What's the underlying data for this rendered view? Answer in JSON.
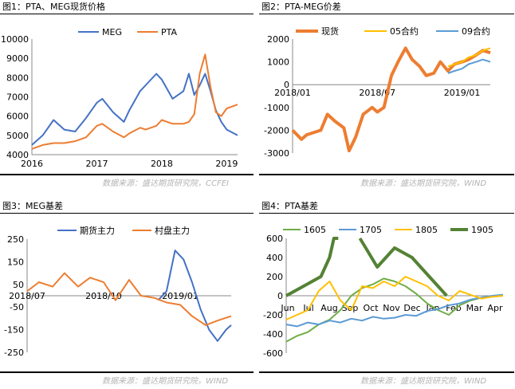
{
  "panels": [
    {
      "title": "图1：PTA、MEG现货价格",
      "source": "数据来源：盛达期货研究院，CCFEI"
    },
    {
      "title": "图2：PTA-MEG价差",
      "source": "数据来源：盛达期货研究院，WIND"
    },
    {
      "title": "图3：MEG基差",
      "source": "数据来源：盛达期货研究院，WIND"
    },
    {
      "title": "图4：PTA基差",
      "source": "数据来源：盛达期货研究院，WIND"
    }
  ],
  "colors": {
    "blue": "#4472C4",
    "orange": "#ED7D31",
    "yellow": "#FFC000",
    "lightblue": "#5B9BD5",
    "green": "#70AD47",
    "darkgreen": "#548235"
  },
  "chart_data": [
    {
      "type": "line",
      "title": "",
      "x_ticks": [
        "2016",
        "2017",
        "2018",
        "2019"
      ],
      "y_ticks": [
        4000,
        5000,
        6000,
        7000,
        8000,
        9000,
        10000
      ],
      "ylim": [
        4000,
        10000
      ],
      "xlim": [
        "2016-01",
        "2019-03"
      ],
      "legend": "top-center",
      "series": [
        {
          "name": "MEG",
          "color": "#4472C4",
          "x": [
            "2016-01",
            "2016-03",
            "2016-05",
            "2016-07",
            "2016-09",
            "2016-11",
            "2017-01",
            "2017-02",
            "2017-04",
            "2017-06",
            "2017-07",
            "2017-09",
            "2017-10",
            "2017-12",
            "2018-01",
            "2018-03",
            "2018-05",
            "2018-06",
            "2018-07",
            "2018-08",
            "2018-09",
            "2018-10",
            "2018-11",
            "2018-12",
            "2019-01",
            "2019-03"
          ],
          "y": [
            4500,
            5000,
            5800,
            5300,
            5200,
            5900,
            6700,
            6900,
            6200,
            5700,
            6300,
            7300,
            7600,
            8200,
            7900,
            6900,
            7300,
            8200,
            7100,
            7600,
            8200,
            7300,
            6300,
            5700,
            5300,
            5000
          ]
        },
        {
          "name": "PTA",
          "color": "#ED7D31",
          "x": [
            "2016-01",
            "2016-03",
            "2016-05",
            "2016-07",
            "2016-09",
            "2016-11",
            "2017-01",
            "2017-02",
            "2017-04",
            "2017-06",
            "2017-07",
            "2017-09",
            "2017-10",
            "2017-12",
            "2018-01",
            "2018-03",
            "2018-05",
            "2018-06",
            "2018-07",
            "2018-08",
            "2018-09",
            "2018-10",
            "2018-11",
            "2018-12",
            "2019-01",
            "2019-03"
          ],
          "y": [
            4300,
            4500,
            4600,
            4600,
            4700,
            4900,
            5500,
            5600,
            5200,
            4900,
            5100,
            5400,
            5300,
            5500,
            5800,
            5600,
            5600,
            5700,
            6100,
            8200,
            9200,
            7500,
            6200,
            6000,
            6400,
            6600
          ]
        }
      ]
    },
    {
      "type": "line",
      "title": "",
      "x_ticks": [
        "2018/01",
        "2018/07",
        "2019/01"
      ],
      "y_ticks": [
        -3000,
        -2000,
        -1000,
        0,
        1000,
        2000
      ],
      "ylim": [
        -3000,
        2000
      ],
      "xlim": [
        "2018-01",
        "2019-03"
      ],
      "legend": "top",
      "series": [
        {
          "name": "现货",
          "color": "#ED7D31",
          "x": [
            "2018-01",
            "2018-01-20",
            "2018-02",
            "2018-03",
            "2018-03-15",
            "2018-04",
            "2018-04-20",
            "2018-05",
            "2018-05-15",
            "2018-06",
            "2018-06-20",
            "2018-07",
            "2018-07-15",
            "2018-08",
            "2018-08-15",
            "2018-09",
            "2018-09-15",
            "2018-10",
            "2018-10-15",
            "2018-11",
            "2018-11-15",
            "2018-12",
            "2018-12-15",
            "2019-01",
            "2019-01-15",
            "2019-02",
            "2019-02-15",
            "2019-03"
          ],
          "y": [
            -2000,
            -2400,
            -2200,
            -2000,
            -1300,
            -1600,
            -1900,
            -2900,
            -2300,
            -1300,
            -1000,
            -1200,
            -1000,
            400,
            1000,
            1600,
            1100,
            800,
            400,
            500,
            1000,
            600,
            900,
            1000,
            1100,
            1300,
            1500,
            1400
          ]
        },
        {
          "name": "05合约",
          "color": "#FFC000",
          "x": [
            "2018-12",
            "2018-12-15",
            "2019-01",
            "2019-01-15",
            "2019-02",
            "2019-02-15",
            "2019-03"
          ],
          "y": [
            800,
            900,
            1000,
            1200,
            1300,
            1500,
            1600
          ]
        },
        {
          "name": "09合约",
          "color": "#5B9BD5",
          "x": [
            "2018-12",
            "2018-12-15",
            "2019-01",
            "2019-01-15",
            "2019-02",
            "2019-02-15",
            "2019-03"
          ],
          "y": [
            500,
            600,
            700,
            900,
            1000,
            1100,
            1000
          ]
        }
      ]
    },
    {
      "type": "line",
      "title": "",
      "x_ticks": [
        "2018/07",
        "2018/10",
        "2019/01"
      ],
      "y_ticks": [
        -250,
        -150,
        -50,
        50,
        150,
        250
      ],
      "y_tick_labels": [
        "-250",
        "-150",
        "-50",
        "50",
        "150",
        "250"
      ],
      "ylim": [
        -250,
        250
      ],
      "xlim": [
        "2018-07",
        "2019-03"
      ],
      "legend": "top",
      "series": [
        {
          "name": "期货主力",
          "color": "#4472C4",
          "x": [
            "2018-12-05",
            "2018-12-15",
            "2018-12-25",
            "2019-01-05",
            "2019-01-15",
            "2019-01-25",
            "2019-02-05",
            "2019-02-15",
            "2019-02-25",
            "2019-03"
          ],
          "y": [
            -20,
            20,
            200,
            160,
            60,
            -60,
            -150,
            -200,
            -150,
            -130
          ]
        },
        {
          "name": "村盘主力",
          "color": "#ED7D31",
          "x": [
            "2018-07",
            "2018-07-15",
            "2018-08",
            "2018-08-15",
            "2018-09",
            "2018-09-15",
            "2018-10",
            "2018-10-15",
            "2018-11",
            "2018-11-15",
            "2018-12",
            "2018-12-15",
            "2019-01",
            "2019-01-15",
            "2019-02",
            "2019-02-15",
            "2019-03"
          ],
          "y": [
            20,
            60,
            40,
            100,
            40,
            80,
            60,
            -20,
            70,
            0,
            -10,
            -30,
            -40,
            -90,
            -130,
            -110,
            -90
          ]
        }
      ]
    },
    {
      "type": "line",
      "title": "",
      "x_ticks": [
        "Jun",
        "Jul",
        "Aug",
        "Sep",
        "Oct",
        "Nov",
        "Dec",
        "Jan",
        "Feb",
        "Mar",
        "Apr"
      ],
      "y_ticks": [
        -600,
        -400,
        -200,
        0,
        200,
        400,
        600
      ],
      "ylim": [
        -600,
        600
      ],
      "legend": "top",
      "series": [
        {
          "name": "1605",
          "color": "#70AD47",
          "x": [
            0,
            0.5,
            1,
            1.5,
            2,
            2.5,
            3,
            3.5,
            4,
            4.5,
            5,
            5.5,
            6,
            6.5,
            7,
            7.5,
            8,
            8.5,
            9,
            9.5,
            10
          ],
          "y": [
            -480,
            -420,
            -380,
            -300,
            -250,
            -150,
            0,
            80,
            120,
            180,
            150,
            100,
            20,
            -80,
            -150,
            -200,
            -100,
            -50,
            -20,
            -10,
            0
          ]
        },
        {
          "name": "1705",
          "color": "#5B9BD5",
          "x": [
            0,
            0.5,
            1,
            1.5,
            2,
            2.5,
            3,
            3.5,
            4,
            4.5,
            5,
            5.5,
            6,
            6.5,
            7,
            7.5,
            8,
            8.5,
            9,
            9.5,
            10
          ],
          "y": [
            -300,
            -320,
            -280,
            -300,
            -260,
            -280,
            -240,
            -260,
            -220,
            -240,
            -230,
            -200,
            -210,
            -160,
            -140,
            -100,
            -80,
            -40,
            -20,
            0,
            10
          ]
        },
        {
          "name": "1805",
          "color": "#FFC000",
          "x": [
            0,
            0.5,
            1,
            1.5,
            2,
            2.5,
            3,
            3.5,
            4,
            4.5,
            5,
            5.5,
            6,
            6.5,
            7,
            7.5,
            8,
            8.5,
            9,
            9.5,
            10
          ],
          "y": [
            -250,
            -200,
            -150,
            50,
            150,
            -50,
            -150,
            100,
            80,
            150,
            100,
            200,
            150,
            100,
            0,
            -50,
            50,
            10,
            -30,
            -10,
            0
          ]
        },
        {
          "name": "1905",
          "color": "#548235",
          "x": [
            0,
            0.4,
            0.8,
            1.2,
            1.6,
            2.0,
            2.2,
            2.4
          ],
          "y": [
            0,
            50,
            100,
            150,
            200,
            400,
            600,
            600
          ],
          "x2": [
            3.4,
            3.8,
            4.2,
            4.6,
            5.0,
            5.4,
            5.8,
            6.2,
            6.6,
            7.0,
            7.4
          ],
          "y2": [
            600,
            450,
            300,
            400,
            500,
            450,
            400,
            300,
            200,
            100,
            0
          ]
        }
      ]
    }
  ]
}
